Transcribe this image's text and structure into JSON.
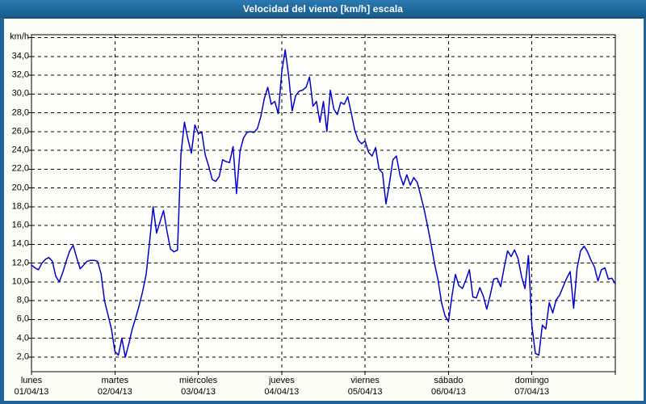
{
  "window": {
    "title": "Velocidad del viento [km/h] escala"
  },
  "colors": {
    "titlebar_top": "#2b7ab0",
    "titlebar_bottom": "#175a8c",
    "frame": "#20639a",
    "background": "#fcfef6",
    "plot_background": "#fffffc",
    "grid": "#000000",
    "axis_border": "#000000",
    "line": "#0000cd",
    "title_text": "#ffffff",
    "label_text": "#000000"
  },
  "chart_data": {
    "type": "line",
    "title": "Velocidad del viento [km/h] escala",
    "ylabel": "km/h",
    "y_tick_values": [
      2,
      4,
      6,
      8,
      10,
      12,
      14,
      16,
      18,
      20,
      22,
      24,
      26,
      28,
      30,
      32,
      34
    ],
    "y_tick_label_format": "decimal-comma",
    "y_top_gridline": 36,
    "ylim": [
      0.45,
      36.3
    ],
    "grid_style": "dashed",
    "legend": "none",
    "x_categories_days": [
      {
        "weekday": "lunes",
        "date": "01/04/13"
      },
      {
        "weekday": "martes",
        "date": "02/04/13"
      },
      {
        "weekday": "miércoles",
        "date": "03/04/13"
      },
      {
        "weekday": "jueves",
        "date": "04/04/13"
      },
      {
        "weekday": "viernes",
        "date": "05/04/13"
      },
      {
        "weekday": "sábado",
        "date": "06/04/13"
      },
      {
        "weekday": "domingo",
        "date": "07/04/13"
      }
    ],
    "x_range_hours": 168,
    "sample_interval_hours": 1,
    "series": [
      {
        "name": "Velocidad del viento [km/h]",
        "values": [
          11.8,
          11.5,
          11.3,
          12.0,
          12.4,
          12.6,
          12.2,
          10.6,
          10.0,
          11.0,
          12.2,
          13.3,
          13.9,
          12.6,
          11.4,
          11.8,
          12.2,
          12.3,
          12.3,
          12.2,
          10.9,
          8.0,
          6.5,
          5.0,
          2.6,
          2.2,
          4.0,
          2.0,
          3.4,
          5.0,
          6.2,
          7.5,
          9.0,
          10.8,
          14.3,
          18.0,
          15.2,
          16.4,
          17.6,
          15.4,
          13.5,
          13.2,
          13.4,
          23.6,
          27.0,
          25.2,
          23.7,
          26.7,
          25.8,
          25.9,
          23.5,
          22.3,
          20.9,
          20.7,
          21.2,
          23.0,
          22.8,
          22.7,
          24.4,
          19.4,
          23.9,
          25.3,
          25.9,
          26.0,
          25.9,
          26.3,
          27.6,
          29.5,
          30.7,
          28.9,
          29.2,
          27.9,
          32.3,
          34.7,
          31.9,
          28.2,
          29.8,
          30.3,
          30.4,
          30.7,
          31.8,
          28.7,
          29.2,
          27.0,
          29.2,
          26.0,
          30.4,
          28.4,
          27.8,
          29.1,
          28.9,
          29.7,
          28.0,
          26.2,
          25.1,
          24.7,
          25.0,
          23.8,
          23.4,
          24.3,
          22.0,
          21.6,
          18.3,
          20.5,
          23.0,
          23.4,
          21.4,
          20.3,
          21.4,
          20.3,
          21.1,
          20.6,
          19.2,
          17.7,
          15.9,
          14.0,
          11.9,
          10.2,
          7.8,
          6.4,
          5.8,
          8.5,
          10.8,
          9.6,
          9.3,
          10.2,
          11.3,
          8.4,
          8.3,
          9.4,
          8.5,
          7.1,
          8.6,
          10.3,
          10.4,
          9.5,
          11.5,
          13.3,
          12.7,
          13.4,
          12.5,
          10.6,
          9.3,
          12.8,
          5.3,
          2.4,
          2.2,
          5.4,
          5.0,
          7.8,
          6.7,
          8.1,
          8.6,
          9.5,
          10.4,
          11.1,
          7.2,
          11.5,
          13.3,
          13.8,
          13.2,
          12.3,
          11.6,
          10.1,
          11.3,
          11.5,
          10.3,
          10.4,
          9.8
        ]
      }
    ]
  }
}
